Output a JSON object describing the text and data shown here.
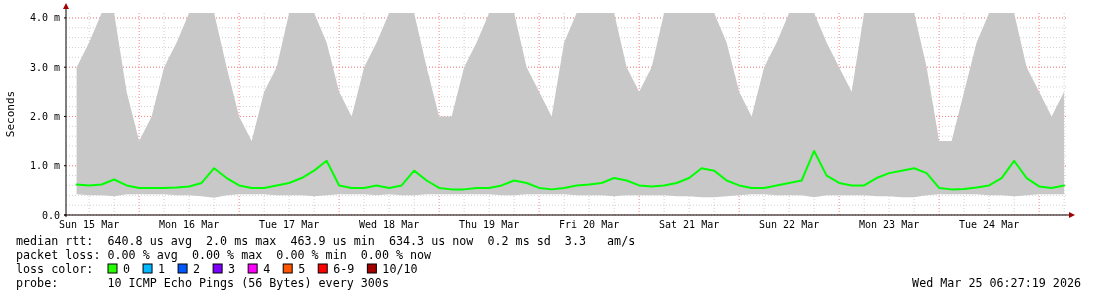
{
  "chart_data": {
    "type": "line",
    "ylabel": "Seconds",
    "xlim": [
      "2026-03-15T06:27",
      "2026-03-25T06:27"
    ],
    "xticks": [
      {
        "value": "2026-03-15T12:00",
        "label": "Sun 15 Mar"
      },
      {
        "value": "2026-03-16T12:00",
        "label": "Mon 16 Mar"
      },
      {
        "value": "2026-03-17T12:00",
        "label": "Tue 17 Mar"
      },
      {
        "value": "2026-03-18T12:00",
        "label": "Wed 18 Mar"
      },
      {
        "value": "2026-03-19T12:00",
        "label": "Thu 19 Mar"
      },
      {
        "value": "2026-03-20T12:00",
        "label": "Fri 20 Mar"
      },
      {
        "value": "2026-03-21T12:00",
        "label": "Sat 21 Mar"
      },
      {
        "value": "2026-03-22T12:00",
        "label": "Sun 22 Mar"
      },
      {
        "value": "2026-03-23T12:00",
        "label": "Mon 23 Mar"
      },
      {
        "value": "2026-03-24T12:00",
        "label": "Tue 24 Mar"
      }
    ],
    "ylim": [
      0,
      4.1
    ],
    "yticks": [
      {
        "value": 0,
        "label": "0.0"
      },
      {
        "value": 1,
        "label": "1.0 m"
      },
      {
        "value": 2,
        "label": "2.0 m"
      },
      {
        "value": 3,
        "label": "3.0 m"
      },
      {
        "value": 4,
        "label": "4.0 m"
      }
    ],
    "grid": true,
    "marker": "none",
    "line_style": "solid",
    "series": [
      {
        "color": "#00ff00",
        "x": [
          "2026-03-15T09:00",
          "2026-03-15T12:00",
          "2026-03-15T15:00",
          "2026-03-15T18:00",
          "2026-03-15T21:00",
          "2026-03-16T00:00",
          "2026-03-16T03:00",
          "2026-03-16T06:00",
          "2026-03-16T09:00",
          "2026-03-16T12:00",
          "2026-03-16T15:00",
          "2026-03-16T18:00",
          "2026-03-16T21:00",
          "2026-03-17T00:00",
          "2026-03-17T03:00",
          "2026-03-17T06:00",
          "2026-03-17T09:00",
          "2026-03-17T12:00",
          "2026-03-17T15:00",
          "2026-03-17T18:00",
          "2026-03-17T21:00",
          "2026-03-18T00:00",
          "2026-03-18T03:00",
          "2026-03-18T06:00",
          "2026-03-18T09:00",
          "2026-03-18T12:00",
          "2026-03-18T15:00",
          "2026-03-18T18:00",
          "2026-03-18T21:00",
          "2026-03-19T00:00",
          "2026-03-19T03:00",
          "2026-03-19T06:00",
          "2026-03-19T09:00",
          "2026-03-19T12:00",
          "2026-03-19T15:00",
          "2026-03-19T18:00",
          "2026-03-19T21:00",
          "2026-03-20T00:00",
          "2026-03-20T03:00",
          "2026-03-20T06:00",
          "2026-03-20T09:00",
          "2026-03-20T12:00",
          "2026-03-20T15:00",
          "2026-03-20T18:00",
          "2026-03-20T21:00",
          "2026-03-21T00:00",
          "2026-03-21T03:00",
          "2026-03-21T06:00",
          "2026-03-21T09:00",
          "2026-03-21T12:00",
          "2026-03-21T15:00",
          "2026-03-21T18:00",
          "2026-03-21T21:00",
          "2026-03-22T00:00",
          "2026-03-22T03:00",
          "2026-03-22T06:00",
          "2026-03-22T09:00",
          "2026-03-22T12:00",
          "2026-03-22T15:00",
          "2026-03-22T18:00",
          "2026-03-22T21:00",
          "2026-03-23T00:00",
          "2026-03-23T03:00",
          "2026-03-23T06:00",
          "2026-03-23T09:00",
          "2026-03-23T12:00",
          "2026-03-23T15:00",
          "2026-03-23T18:00",
          "2026-03-23T21:00",
          "2026-03-24T00:00",
          "2026-03-24T03:00",
          "2026-03-24T06:00",
          "2026-03-24T09:00",
          "2026-03-24T12:00",
          "2026-03-24T15:00",
          "2026-03-24T18:00",
          "2026-03-24T21:00",
          "2026-03-25T00:00",
          "2026-03-25T03:00",
          "2026-03-25T06:00"
        ],
        "values": [
          0.62,
          0.6,
          0.62,
          0.72,
          0.6,
          0.55,
          0.55,
          0.55,
          0.56,
          0.58,
          0.65,
          0.95,
          0.75,
          0.6,
          0.55,
          0.55,
          0.6,
          0.65,
          0.75,
          0.9,
          1.1,
          0.6,
          0.55,
          0.55,
          0.6,
          0.55,
          0.6,
          0.9,
          0.7,
          0.55,
          0.52,
          0.52,
          0.55,
          0.55,
          0.6,
          0.7,
          0.65,
          0.55,
          0.52,
          0.55,
          0.6,
          0.62,
          0.65,
          0.75,
          0.7,
          0.6,
          0.58,
          0.6,
          0.65,
          0.75,
          0.95,
          0.9,
          0.7,
          0.6,
          0.55,
          0.55,
          0.6,
          0.65,
          0.7,
          1.3,
          0.8,
          0.65,
          0.6,
          0.6,
          0.75,
          0.85,
          0.9,
          0.95,
          0.85,
          0.55,
          0.52,
          0.53,
          0.56,
          0.6,
          0.75,
          1.1,
          0.75,
          0.58,
          0.55,
          0.6
        ],
        "lower": [
          0.42,
          0.4,
          0.4,
          0.38,
          0.42,
          0.42,
          0.42,
          0.42,
          0.4,
          0.4,
          0.38,
          0.35,
          0.4,
          0.42,
          0.42,
          0.42,
          0.4,
          0.4,
          0.4,
          0.38,
          0.4,
          0.42,
          0.42,
          0.42,
          0.4,
          0.42,
          0.4,
          0.4,
          0.42,
          0.42,
          0.42,
          0.42,
          0.42,
          0.42,
          0.4,
          0.4,
          0.42,
          0.42,
          0.42,
          0.42,
          0.4,
          0.4,
          0.4,
          0.38,
          0.4,
          0.4,
          0.4,
          0.4,
          0.38,
          0.38,
          0.36,
          0.36,
          0.38,
          0.4,
          0.42,
          0.42,
          0.4,
          0.4,
          0.4,
          0.36,
          0.4,
          0.4,
          0.4,
          0.4,
          0.38,
          0.38,
          0.36,
          0.36,
          0.4,
          0.42,
          0.42,
          0.42,
          0.42,
          0.4,
          0.4,
          0.38,
          0.4,
          0.42,
          0.42,
          0.42
        ],
        "upper": [
          3.0,
          3.5,
          4.1,
          4.1,
          2.5,
          1.5,
          2.0,
          3.0,
          3.5,
          4.1,
          4.1,
          4.1,
          3.0,
          2.0,
          1.5,
          2.5,
          3.0,
          4.1,
          4.1,
          4.1,
          3.5,
          2.5,
          2.0,
          3.0,
          3.5,
          4.1,
          4.1,
          4.1,
          3.0,
          2.0,
          2.0,
          3.0,
          3.5,
          4.1,
          4.1,
          4.1,
          3.0,
          2.5,
          2.0,
          3.5,
          4.1,
          4.1,
          4.1,
          4.1,
          3.0,
          2.5,
          3.0,
          4.1,
          4.1,
          4.1,
          4.1,
          4.1,
          3.5,
          2.5,
          2.0,
          3.0,
          3.5,
          4.1,
          4.1,
          4.1,
          3.5,
          3.0,
          2.5,
          4.1,
          4.1,
          4.1,
          4.1,
          4.1,
          3.0,
          1.5,
          1.5,
          2.5,
          3.5,
          4.1,
          4.1,
          4.1,
          3.0,
          2.5,
          2.0,
          2.5
        ]
      }
    ],
    "annotations": [
      "median rtt:  640.8 us avg  2.0 ms max  463.9 us min  634.3 us now  0.2 ms sd  3.3   am/s",
      "packet loss: 0.00 % avg  0.00 % max  0.00 % min  0.00 % now",
      "loss color:",
      "0",
      "1",
      "2",
      "3",
      "4",
      "5",
      "6-9",
      "10/10",
      "probe:       10 ICMP Echo Pings (56 Bytes) every 300s",
      "Wed Mar 25 06:27:19 2026"
    ]
  }
}
